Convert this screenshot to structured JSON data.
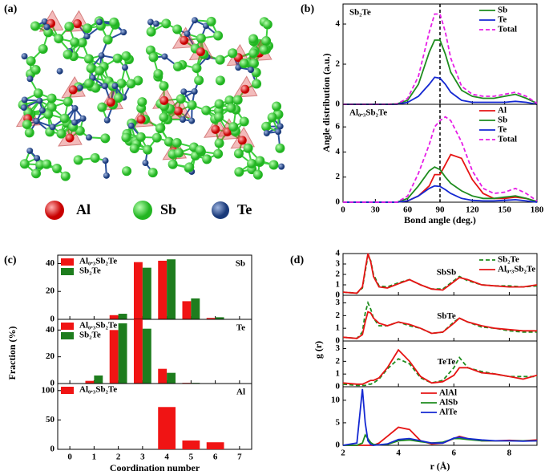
{
  "panel_a": {
    "label": "(a)",
    "legend": [
      "Al",
      "Sb",
      "Te"
    ]
  },
  "chart_data": [
    {
      "type": "line",
      "label": "(b)",
      "xlabel": "Bond angle (deg.)",
      "ylabel": "Angle distribution (a.u.)",
      "xlim": [
        0,
        180
      ],
      "xticks": [
        0,
        30,
        60,
        90,
        120,
        150,
        180
      ],
      "vline": 90,
      "x": [
        0,
        10,
        20,
        30,
        40,
        50,
        60,
        70,
        80,
        85,
        90,
        95,
        100,
        110,
        120,
        130,
        140,
        150,
        160,
        170,
        180
      ],
      "subplots": [
        {
          "title": "Sb₂Te",
          "title_loc": "upper left",
          "legend": "upper right",
          "ylim": [
            0,
            5
          ],
          "yticks": [
            0,
            2,
            4
          ],
          "series": [
            {
              "name": "Sb",
              "color": "#1e8c1e",
              "dashed": false,
              "values": [
                0,
                0,
                0,
                0,
                0,
                0.02,
                0.2,
                1.0,
                2.6,
                3.2,
                3.2,
                2.5,
                1.6,
                0.7,
                0.4,
                0.3,
                0.3,
                0.4,
                0.5,
                0.3,
                0.05
              ]
            },
            {
              "name": "Te",
              "color": "#1428d2",
              "dashed": false,
              "values": [
                0,
                0,
                0,
                0,
                0,
                0,
                0.1,
                0.4,
                1.0,
                1.35,
                1.3,
                1.0,
                0.6,
                0.2,
                0.1,
                0.1,
                0.1,
                0.1,
                0.15,
                0.1,
                0
              ]
            },
            {
              "name": "Total",
              "color": "#e61ee6",
              "dashed": true,
              "values": [
                0,
                0,
                0,
                0,
                0,
                0.02,
                0.3,
                1.4,
                3.6,
                4.5,
                4.5,
                3.6,
                2.3,
                0.9,
                0.5,
                0.4,
                0.4,
                0.5,
                0.6,
                0.4,
                0.05
              ]
            }
          ]
        },
        {
          "title": "Al₀.₃Sb₂Te",
          "title_loc": "upper left",
          "legend": "upper right",
          "ylim": [
            0,
            7.8
          ],
          "yticks": [
            0,
            2,
            4,
            6
          ],
          "series": [
            {
              "name": "Al",
              "color": "#e61414",
              "dashed": false,
              "values": [
                0,
                0,
                0,
                0,
                0,
                0,
                0.1,
                0.5,
                1.3,
                2.2,
                2.2,
                3.0,
                3.8,
                3.5,
                1.8,
                0.7,
                0.3,
                0.3,
                0.4,
                0.3,
                0.05
              ]
            },
            {
              "name": "Sb",
              "color": "#1e8c1e",
              "dashed": false,
              "values": [
                0,
                0,
                0,
                0,
                0,
                0,
                0.3,
                1.3,
                2.5,
                2.8,
                2.6,
                2.0,
                1.5,
                0.9,
                0.5,
                0.3,
                0.3,
                0.4,
                0.5,
                0.3,
                0.05
              ]
            },
            {
              "name": "Te",
              "color": "#1428d2",
              "dashed": false,
              "values": [
                0,
                0,
                0,
                0,
                0,
                0,
                0.1,
                0.5,
                1.1,
                1.3,
                1.25,
                1.0,
                0.7,
                0.3,
                0.15,
                0.1,
                0.1,
                0.15,
                0.2,
                0.1,
                0
              ]
            },
            {
              "name": "Total",
              "color": "#e61ee6",
              "dashed": true,
              "values": [
                0,
                0,
                0,
                0,
                0,
                0,
                0.5,
                2.3,
                4.6,
                6.0,
                6.5,
                6.8,
                6.5,
                4.8,
                2.5,
                1.1,
                0.7,
                0.8,
                1.1,
                0.7,
                0.1
              ]
            }
          ]
        }
      ]
    },
    {
      "type": "bar",
      "label": "(c)",
      "xlabel": "Coordination number",
      "ylabel": "Fraction (%)",
      "xlim": [
        -0.5,
        7.5
      ],
      "xticks": [
        0,
        1,
        2,
        3,
        4,
        5,
        6,
        7
      ],
      "x": [
        1,
        2,
        3,
        4,
        5,
        6
      ],
      "subplots": [
        {
          "title": "Sb",
          "title_loc": "upper right",
          "legend": "upper left",
          "ylim": [
            0,
            46
          ],
          "yticks": [
            0,
            20,
            40
          ],
          "series": [
            {
              "name": "Al₀.₃Sb₂Te",
              "color": "#f01414",
              "values": [
                0,
                3,
                41,
                42,
                13,
                1
              ]
            },
            {
              "name": "Sb₂Te",
              "color": "#1e7d1e",
              "values": [
                0,
                4,
                37,
                43,
                15,
                1.5
              ]
            }
          ]
        },
        {
          "title": "Te",
          "title_loc": "upper right",
          "legend": "upper left",
          "ylim": [
            0,
            48
          ],
          "yticks": [
            0,
            20,
            40
          ],
          "series": [
            {
              "name": "Al₀.₃Sb₂Te",
              "color": "#f01414",
              "values": [
                2,
                40,
                48,
                11,
                0.5,
                0
              ]
            },
            {
              "name": "Sb₂Te",
              "color": "#1e7d1e",
              "values": [
                6,
                45,
                41,
                8,
                0.5,
                0
              ]
            }
          ]
        },
        {
          "title": "Al",
          "title_loc": "upper right",
          "legend": "upper left",
          "ylim": [
            0,
            112
          ],
          "yticks": [
            0,
            50,
            100
          ],
          "series": [
            {
              "name": "Al₀.₃Sb₂Te",
              "color": "#f01414",
              "values": [
                0,
                0,
                0,
                72,
                15,
                12
              ]
            }
          ]
        }
      ]
    },
    {
      "type": "line",
      "label": "(d)",
      "xlabel": "r (Å)",
      "ylabel": "g (r)",
      "xlim": [
        2,
        9
      ],
      "xticks": [
        2,
        4,
        6,
        8
      ],
      "x": [
        2,
        2.5,
        2.7,
        2.8,
        2.9,
        3.0,
        3.1,
        3.3,
        3.6,
        4.0,
        4.4,
        4.8,
        5.2,
        5.6,
        6.0,
        6.2,
        6.5,
        7.0,
        7.5,
        8.0,
        8.5,
        9.0
      ],
      "subplots": [
        {
          "title": "SbSb",
          "title_loc": "center",
          "legend": "upper right",
          "ylim": [
            0,
            4
          ],
          "yticks": [
            0,
            1,
            2,
            3,
            4
          ],
          "series": [
            {
              "name": "Sb₂Te",
              "color": "#1e8c1e",
              "dashed": true,
              "values": [
                0.3,
                0.2,
                0.7,
                2.3,
                3.8,
                3.3,
                2.0,
                0.9,
                0.8,
                1.2,
                1.5,
                1.0,
                0.6,
                0.6,
                1.4,
                1.8,
                1.4,
                1.0,
                0.9,
                0.9,
                0.8,
                0.9
              ]
            },
            {
              "name": "Al₀.₃Sb₂Te",
              "color": "#e61414",
              "dashed": false,
              "values": [
                0.3,
                0.2,
                0.8,
                2.5,
                4.0,
                3.2,
                1.8,
                0.8,
                0.7,
                1.1,
                1.5,
                1.0,
                0.6,
                0.5,
                1.3,
                1.7,
                1.5,
                1.0,
                0.9,
                0.8,
                0.8,
                1.0
              ]
            }
          ]
        },
        {
          "title": "SbTe",
          "title_loc": "center",
          "ylim": [
            0,
            3.6
          ],
          "yticks": [
            0,
            1,
            2,
            3
          ],
          "series": [
            {
              "color": "#1e8c1e",
              "dashed": true,
              "values": [
                0.3,
                0.2,
                0.7,
                2.2,
                3.0,
                2.5,
                1.8,
                1.2,
                1.2,
                1.5,
                1.2,
                1.0,
                0.6,
                0.7,
                1.5,
                1.8,
                1.5,
                1.1,
                1.0,
                0.8,
                0.7,
                0.7
              ]
            },
            {
              "color": "#e61414",
              "dashed": false,
              "values": [
                0.3,
                0.2,
                0.5,
                1.5,
                2.3,
                2.2,
                1.8,
                1.4,
                1.2,
                1.5,
                1.3,
                1.0,
                0.6,
                0.7,
                1.4,
                1.8,
                1.5,
                1.2,
                1.0,
                0.9,
                0.8,
                0.8
              ]
            }
          ]
        },
        {
          "title": "TeTe",
          "title_loc": "center",
          "ylim": [
            0,
            3.6
          ],
          "yticks": [
            0,
            1,
            2,
            3
          ],
          "series": [
            {
              "color": "#1e8c1e",
              "dashed": true,
              "values": [
                0.2,
                0.1,
                0.1,
                0.1,
                0.2,
                0.2,
                0.3,
                0.6,
                1.4,
                2.2,
                1.8,
                0.7,
                0.3,
                0.5,
                1.5,
                2.3,
                1.5,
                1.2,
                1.0,
                0.8,
                0.8,
                0.8
              ]
            },
            {
              "color": "#e61414",
              "dashed": false,
              "values": [
                0.3,
                0.2,
                0.2,
                0.3,
                0.4,
                0.5,
                0.5,
                0.7,
                1.5,
                2.9,
                2.0,
                0.8,
                0.3,
                0.4,
                0.9,
                1.5,
                1.5,
                1.1,
                1.0,
                0.8,
                0.6,
                0.9
              ]
            }
          ]
        },
        {
          "legend": "upper center",
          "ylim": [
            0,
            13
          ],
          "yticks": [
            0,
            5,
            10
          ],
          "series": [
            {
              "name": "AlAl",
              "color": "#e61414",
              "dashed": false,
              "values": [
                0,
                0,
                0,
                0,
                0,
                0,
                0,
                0.5,
                2.0,
                4.0,
                3.5,
                1.0,
                0.3,
                0.5,
                1.5,
                2.0,
                1.5,
                1.0,
                1.0,
                1.1,
                1.0,
                1.2
              ]
            },
            {
              "name": "AlSb",
              "color": "#1e8c1e",
              "dashed": false,
              "values": [
                0,
                0,
                0.5,
                2.3,
                1.5,
                0.6,
                0.2,
                0.1,
                0.2,
                1.0,
                1.2,
                0.8,
                0.5,
                0.7,
                1.5,
                1.5,
                1.3,
                1.0,
                1.0,
                1.0,
                1.0,
                1.0
              ]
            },
            {
              "name": "AlTe",
              "color": "#1428d2",
              "dashed": false,
              "values": [
                0,
                0.5,
                12.5,
                5,
                1,
                0.2,
                0,
                0.1,
                0.3,
                1.3,
                1.5,
                1.0,
                0.5,
                0.5,
                1.6,
                1.8,
                1.5,
                1.2,
                1.0,
                1.0,
                0.9,
                1.0
              ]
            }
          ]
        }
      ]
    }
  ]
}
